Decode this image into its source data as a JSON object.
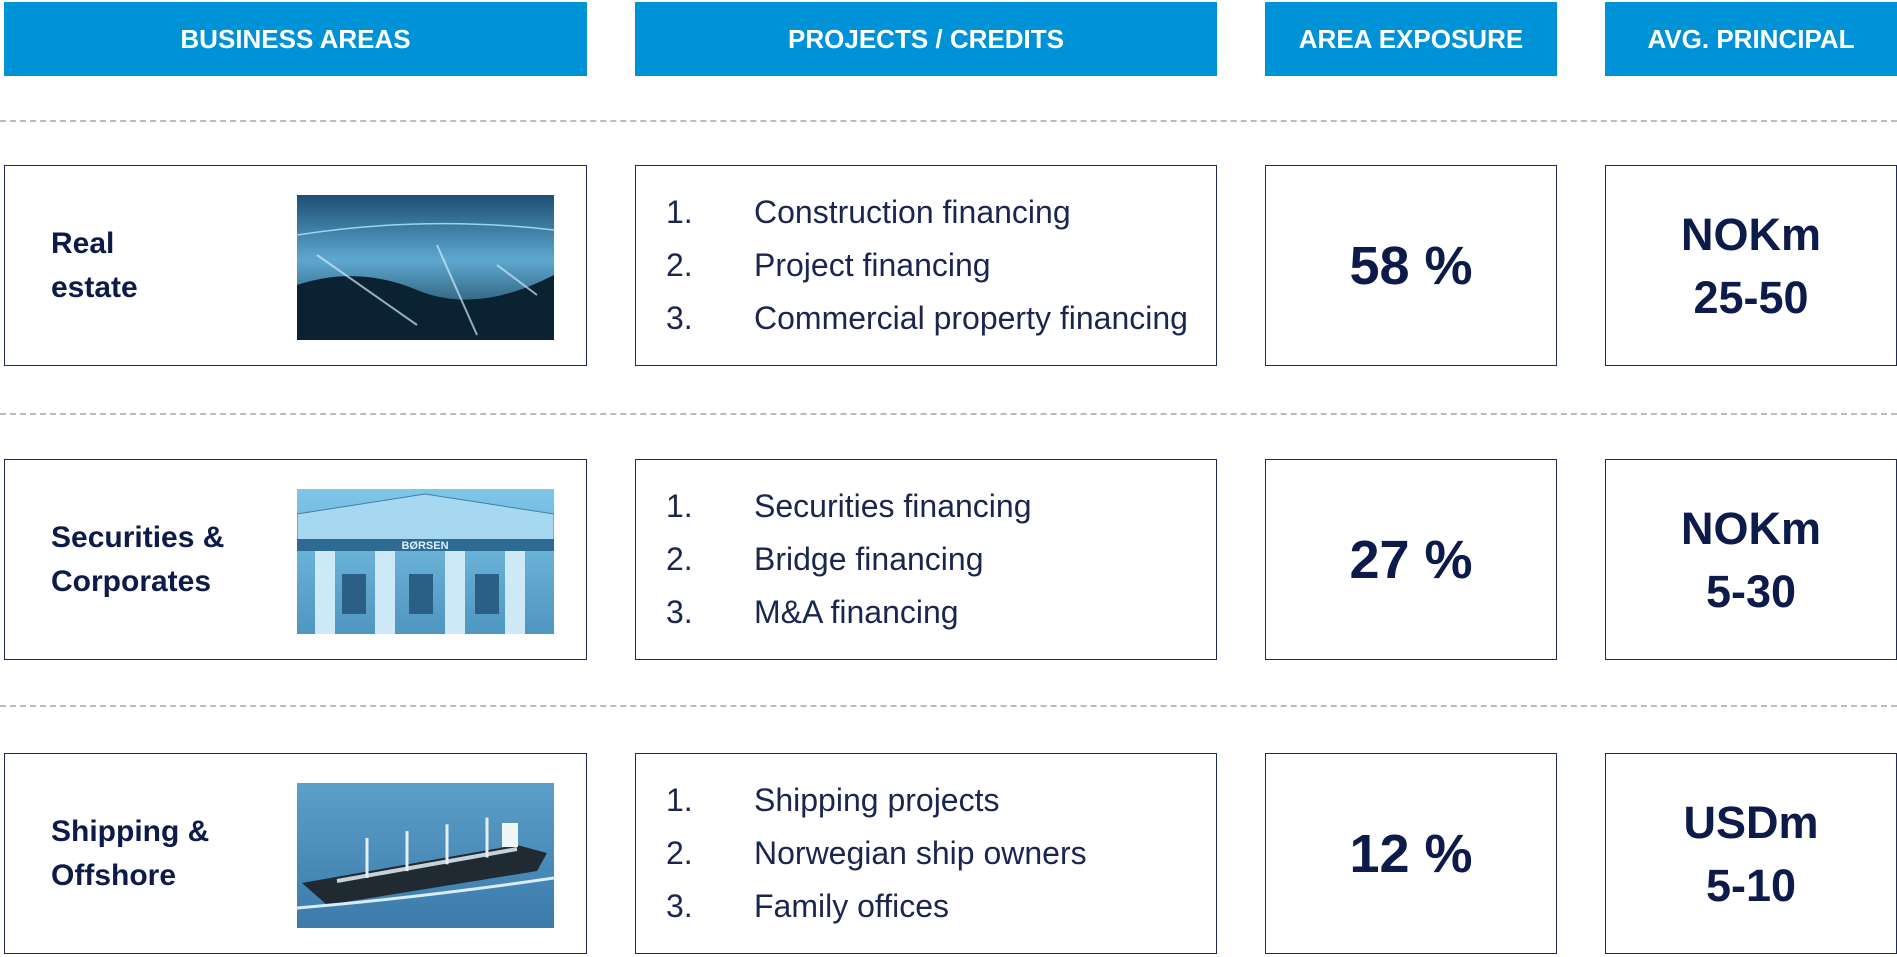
{
  "header": {
    "columns": [
      "BUSINESS AREAS",
      "PROJECTS / CREDITS",
      "AREA EXPOSURE",
      "AVG. PRINCIPAL"
    ]
  },
  "rows": [
    {
      "area": [
        "Real",
        "estate"
      ],
      "items": [
        "Construction financing",
        "Project financing",
        "Commercial property financing"
      ],
      "exposure": "58 %",
      "principal": [
        "NOKm",
        "25-50"
      ]
    },
    {
      "area": [
        "Securities &",
        "Corporates"
      ],
      "items": [
        "Securities financing",
        "Bridge financing",
        "M&A financing"
      ],
      "exposure": "27 %",
      "principal": [
        "NOKm",
        "5-30"
      ]
    },
    {
      "area": [
        "Shipping &",
        "Offshore"
      ],
      "items": [
        "Shipping projects",
        "Norwegian ship owners",
        "Family offices"
      ],
      "exposure": "12 %",
      "principal": [
        "USDm",
        "5-10"
      ]
    }
  ]
}
